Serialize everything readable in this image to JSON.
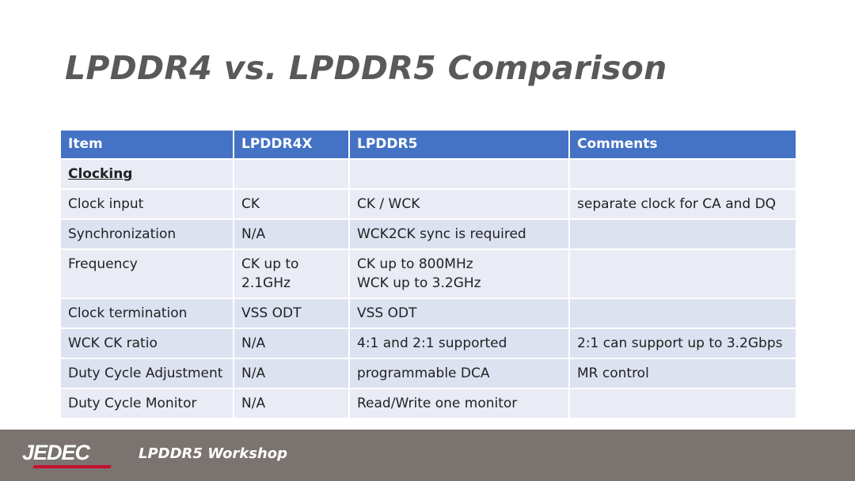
{
  "header": {
    "title": "LPDDR4 vs. LPDDR5 Comparison"
  },
  "table": {
    "columns": [
      "Item",
      "LPDDR4X",
      "LPDDR5",
      "Comments"
    ],
    "rows": [
      [
        "Clocking",
        null,
        null,
        null
      ],
      [
        "Clock input",
        "CK",
        "CK / WCK",
        "separate clock for CA and DQ"
      ],
      [
        "Synchronization",
        "N/A",
        "WCK2CK sync is required",
        null
      ],
      [
        "Frequency",
        "CK up to\n2.1GHz",
        "CK up to 800MHz\nWCK up to 3.2GHz",
        null
      ],
      [
        "Clock termination",
        "VSS ODT",
        "VSS ODT",
        null
      ],
      [
        "WCK CK ratio",
        "N/A",
        "4:1 and 2:1 supported",
        "2:1 can support up to 3.2Gbps"
      ],
      [
        "Duty Cycle Adjustment",
        "N/A",
        "programmable DCA",
        "MR control"
      ],
      [
        "Duty Cycle Monitor",
        "N/A",
        "Read/Write one monitor",
        null
      ]
    ]
  },
  "footer": {
    "logo": "JEDEC",
    "text": "LPDDR5 Workshop"
  }
}
